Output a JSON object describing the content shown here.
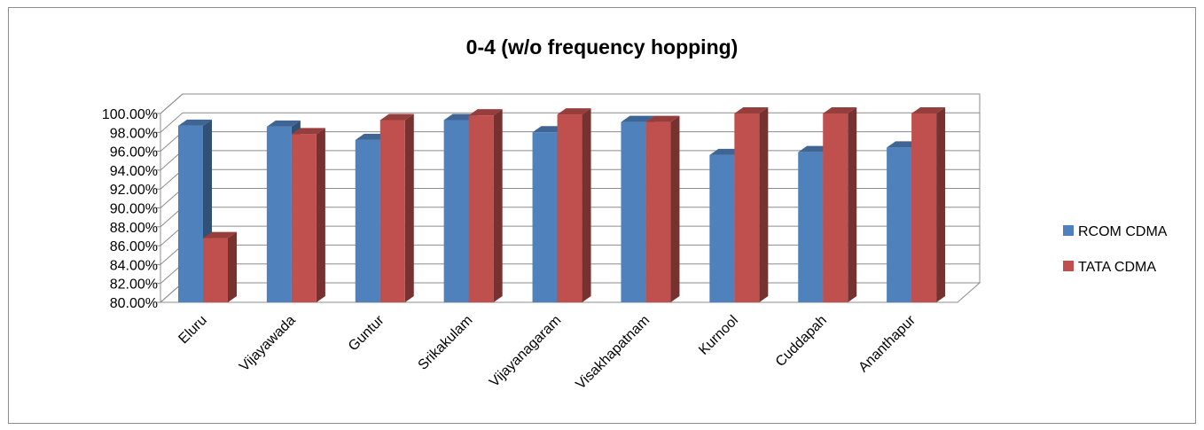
{
  "chart_data": {
    "type": "bar",
    "title": "0-4 (w/o frequency hopping)",
    "categories": [
      "Eluru",
      "Vijayawada",
      "Guntur",
      "Srikakulam",
      "Vijayanagaram",
      "Visakhapatnam",
      "Kurnool",
      "Cuddapah",
      "Ananthapur"
    ],
    "series": [
      {
        "name": "RCOM CDMA",
        "color": "#4f81bd",
        "values": [
          98.7,
          98.6,
          97.2,
          99.3,
          98.0,
          99.1,
          95.6,
          95.9,
          96.4
        ]
      },
      {
        "name": "TATA CDMA",
        "color": "#c0504d",
        "values": [
          86.8,
          97.8,
          99.3,
          99.8,
          99.9,
          99.1,
          100.0,
          100.0,
          100.0
        ]
      }
    ],
    "yticks": [
      "80.00%",
      "82.00%",
      "84.00%",
      "86.00%",
      "88.00%",
      "90.00%",
      "92.00%",
      "94.00%",
      "96.00%",
      "98.00%",
      "100.00%"
    ],
    "ylim": [
      80,
      100
    ],
    "grid": true,
    "legend_position": "right",
    "style": "3d-clustered-column"
  }
}
